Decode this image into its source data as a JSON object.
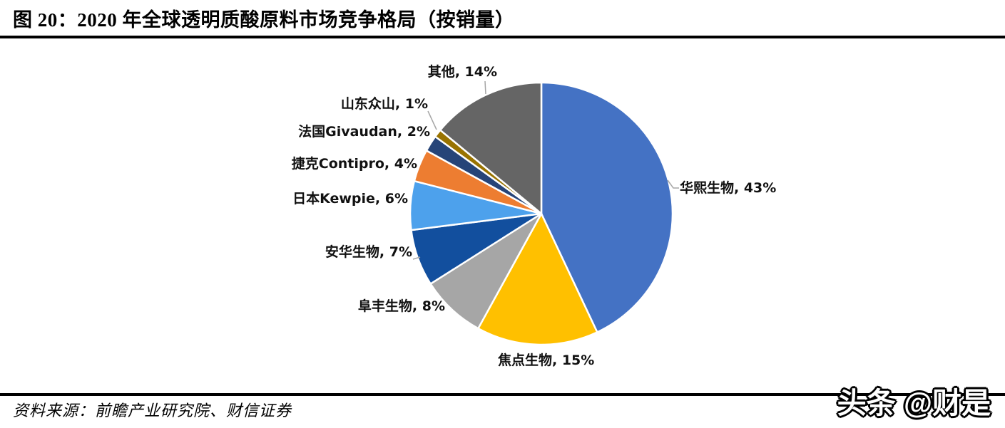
{
  "header": {
    "title": "图 20：2020 年全球透明质酸原料市场竞争格局（按销量）"
  },
  "footer": {
    "source": "资料来源：前瞻产业研究院、财信证券",
    "watermark": "头条 @财是"
  },
  "chart_data": {
    "type": "pie",
    "title": "2020 年全球透明质酸原料市场竞争格局（按销量）",
    "unit": "%",
    "categories": [
      "华熙生物",
      "焦点生物",
      "阜丰生物",
      "安华生物",
      "日本Kewpie",
      "捷克Contipro",
      "法国Givaudan",
      "山东众山",
      "其他"
    ],
    "values": [
      43,
      15,
      8,
      7,
      6,
      4,
      2,
      1,
      14
    ],
    "colors": [
      "#4472C4",
      "#FFC000",
      "#A6A6A6",
      "#124F9E",
      "#4DA1EC",
      "#ED7D31",
      "#264478",
      "#997300",
      "#656565"
    ],
    "label_separator": ", ",
    "start_angle_deg": 0,
    "direction": "clockwise",
    "legend": "none",
    "data_labels": "outside"
  }
}
